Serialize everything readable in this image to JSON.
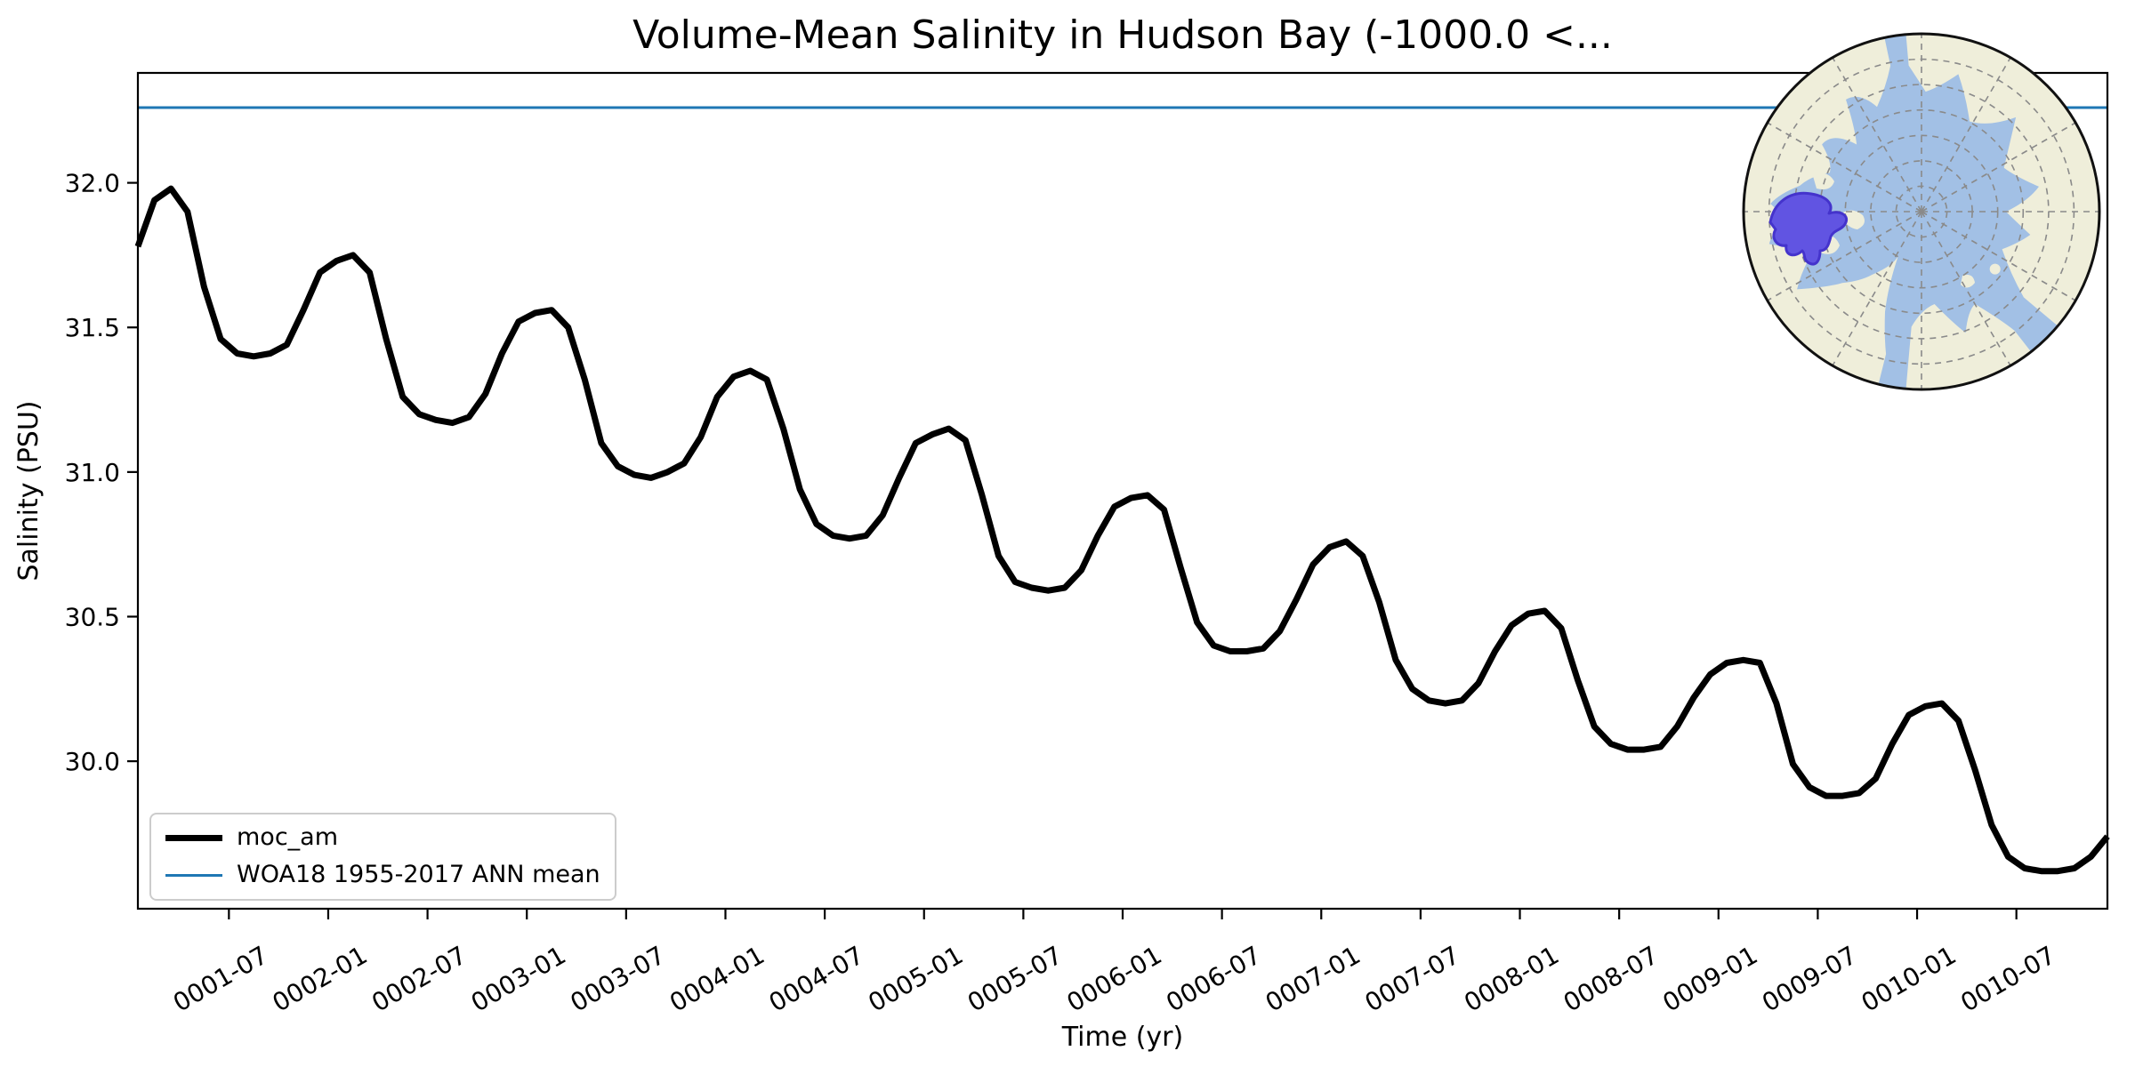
{
  "figure": {
    "title": "Volume-Mean Salinity in Hudson Bay (-1000.0 <...",
    "xlabel": "Time (yr)",
    "ylabel": "Salinity (PSU)"
  },
  "legend": {
    "position": "lower left",
    "items": [
      {
        "label": "moc_am",
        "color": "#000000",
        "linewidth": 7
      },
      {
        "label": "WOA18 1955-2017 ANN mean",
        "color": "#1f77b4",
        "linewidth": 3
      }
    ]
  },
  "chart_data": {
    "type": "line",
    "title": "Volume-Mean Salinity in Hudson Bay (-1000.0 <...",
    "xlabel": "Time (yr)",
    "ylabel": "Salinity (PSU)",
    "grid": false,
    "legend_position": "lower left",
    "ylim": [
      29.49,
      32.38
    ],
    "yticks": [
      32.0,
      31.5,
      31.0,
      30.5,
      30.0
    ],
    "xtick_labels": [
      "0001-07",
      "0002-01",
      "0002-07",
      "0003-01",
      "0003-07",
      "0004-01",
      "0004-07",
      "0005-01",
      "0005-07",
      "0006-01",
      "0006-07",
      "0007-01",
      "0007-07",
      "0008-01",
      "0008-07",
      "0009-01",
      "0009-07",
      "0010-01",
      "0010-07"
    ],
    "x": [
      "0001-01",
      "0001-02",
      "0001-03",
      "0001-04",
      "0001-05",
      "0001-06",
      "0001-07",
      "0001-08",
      "0001-09",
      "0001-10",
      "0001-11",
      "0001-12",
      "0002-01",
      "0002-02",
      "0002-03",
      "0002-04",
      "0002-05",
      "0002-06",
      "0002-07",
      "0002-08",
      "0002-09",
      "0002-10",
      "0002-11",
      "0002-12",
      "0003-01",
      "0003-02",
      "0003-03",
      "0003-04",
      "0003-05",
      "0003-06",
      "0003-07",
      "0003-08",
      "0003-09",
      "0003-10",
      "0003-11",
      "0003-12",
      "0004-01",
      "0004-02",
      "0004-03",
      "0004-04",
      "0004-05",
      "0004-06",
      "0004-07",
      "0004-08",
      "0004-09",
      "0004-10",
      "0004-11",
      "0004-12",
      "0005-01",
      "0005-02",
      "0005-03",
      "0005-04",
      "0005-05",
      "0005-06",
      "0005-07",
      "0005-08",
      "0005-09",
      "0005-10",
      "0005-11",
      "0005-12",
      "0006-01",
      "0006-02",
      "0006-03",
      "0006-04",
      "0006-05",
      "0006-06",
      "0006-07",
      "0006-08",
      "0006-09",
      "0006-10",
      "0006-11",
      "0006-12",
      "0007-01",
      "0007-02",
      "0007-03",
      "0007-04",
      "0007-05",
      "0007-06",
      "0007-07",
      "0007-08",
      "0007-09",
      "0007-10",
      "0007-11",
      "0007-12",
      "0008-01",
      "0008-02",
      "0008-03",
      "0008-04",
      "0008-05",
      "0008-06",
      "0008-07",
      "0008-08",
      "0008-09",
      "0008-10",
      "0008-11",
      "0008-12",
      "0009-01",
      "0009-02",
      "0009-03",
      "0009-04",
      "0009-05",
      "0009-06",
      "0009-07",
      "0009-08",
      "0009-09",
      "0009-10",
      "0009-11",
      "0009-12",
      "0010-01",
      "0010-02",
      "0010-03",
      "0010-04",
      "0010-05",
      "0010-06",
      "0010-07",
      "0010-08",
      "0010-09",
      "0010-10",
      "0010-11",
      "0010-12"
    ],
    "series": [
      {
        "name": "moc_am",
        "type": "line",
        "color": "#000000",
        "linewidth": 7,
        "values": [
          31.78,
          31.94,
          31.98,
          31.9,
          31.64,
          31.46,
          31.41,
          31.4,
          31.41,
          31.44,
          31.56,
          31.69,
          31.73,
          31.75,
          31.69,
          31.46,
          31.26,
          31.2,
          31.18,
          31.17,
          31.19,
          31.27,
          31.41,
          31.52,
          31.55,
          31.56,
          31.5,
          31.32,
          31.1,
          31.02,
          30.99,
          30.98,
          31.0,
          31.03,
          31.12,
          31.26,
          31.33,
          31.35,
          31.32,
          31.15,
          30.94,
          30.82,
          30.78,
          30.77,
          30.78,
          30.85,
          30.98,
          31.1,
          31.13,
          31.15,
          31.11,
          30.92,
          30.71,
          30.62,
          30.6,
          30.59,
          30.6,
          30.66,
          30.78,
          30.88,
          30.91,
          30.92,
          30.87,
          30.67,
          30.48,
          30.4,
          30.38,
          30.38,
          30.39,
          30.45,
          30.56,
          30.68,
          30.74,
          30.76,
          30.71,
          30.55,
          30.35,
          30.25,
          30.21,
          30.2,
          30.21,
          30.27,
          30.38,
          30.47,
          30.51,
          30.52,
          30.46,
          30.28,
          30.12,
          30.06,
          30.04,
          30.04,
          30.05,
          30.12,
          30.22,
          30.3,
          30.34,
          30.35,
          30.34,
          30.2,
          29.99,
          29.91,
          29.88,
          29.88,
          29.89,
          29.94,
          30.06,
          30.16,
          30.19,
          30.2,
          30.14,
          29.97,
          29.78,
          29.67,
          29.63,
          29.62,
          29.62,
          29.63,
          29.67,
          29.74
        ]
      },
      {
        "name": "WOA18 1955-2017 ANN mean",
        "type": "hline",
        "color": "#1f77b4",
        "linewidth": 3,
        "value": 32.26
      }
    ]
  },
  "inset_map": {
    "projection": "north-polar-stereographic",
    "highlight_region": "Hudson Bay",
    "colors": {
      "ocean": "#a2c0e5",
      "land": "#efeeda",
      "region_fill": "#6154e2",
      "region_edge": "#4433cc",
      "graticule": "#8a8a8a",
      "border": "#111111"
    }
  }
}
